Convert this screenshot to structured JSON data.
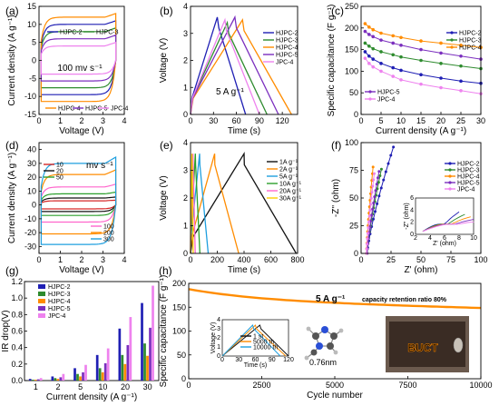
{
  "chart_data": [
    {
      "panel": "(a)",
      "type": "line",
      "xlabel": "Voltage (V)",
      "ylabel": "Current density (A g⁻¹)",
      "xlim": [
        0,
        4
      ],
      "ylim": [
        -15,
        15
      ],
      "xticks": [
        0,
        1,
        2,
        3,
        4
      ],
      "yticks": [
        -15,
        -10,
        -5,
        0,
        5,
        10,
        15
      ],
      "annotation": "100 mv s⁻¹",
      "legend_top": [
        "HJPC-2",
        "HJPC-3"
      ],
      "legend_bottom": [
        "HJPC-4",
        "HJPC-5",
        "JPC-4"
      ],
      "series": [
        {
          "name": "HJPC-2",
          "color": "#1f1fb4",
          "amp": 10,
          "ymax": 11
        },
        {
          "name": "HJPC-3",
          "color": "#2e8b2e",
          "amp": 8,
          "ymax": 9
        },
        {
          "name": "HJPC-4",
          "color": "#ff8c00",
          "amp": 12,
          "ymax": 13
        },
        {
          "name": "HJPC-5",
          "color": "#7b2fbe",
          "amp": 6,
          "ymax": 7
        },
        {
          "name": "JPC-4",
          "color": "#ee82ee",
          "amp": 4,
          "ymax": 5
        }
      ]
    },
    {
      "panel": "(b)",
      "type": "line",
      "xlabel": "Time (s)",
      "ylabel": "Voltage (V)",
      "xlim": [
        0,
        140
      ],
      "ylim": [
        0,
        4
      ],
      "xticks": [
        0,
        30,
        60,
        90,
        120
      ],
      "yticks": [
        0,
        1,
        2,
        3,
        4
      ],
      "annotation": "5 A g⁻¹",
      "series": [
        {
          "name": "HJPC-2",
          "color": "#1f1fb4",
          "peak_time": 35,
          "end_time": 72,
          "peak_v": 3.6
        },
        {
          "name": "HJPC-3",
          "color": "#2e8b2e",
          "peak_time": 48,
          "end_time": 100,
          "peak_v": 3.4
        },
        {
          "name": "HJPC-4",
          "color": "#ff8c00",
          "peak_time": 68,
          "end_time": 132,
          "peak_v": 3.5
        },
        {
          "name": "HJPC-5",
          "color": "#7b2fbe",
          "peak_time": 58,
          "end_time": 115,
          "peak_v": 3.6
        },
        {
          "name": "JPC-4",
          "color": "#ee82ee",
          "peak_time": 45,
          "end_time": 90,
          "peak_v": 3.5
        }
      ]
    },
    {
      "panel": "(c)",
      "type": "line",
      "xlabel": "Current density (A g⁻¹)",
      "ylabel": "Specific capacitance (F g⁻¹)",
      "xlim": [
        0,
        30
      ],
      "ylim": [
        0,
        250
      ],
      "xticks": [
        0,
        5,
        10,
        15,
        20,
        25,
        30
      ],
      "yticks": [
        0,
        50,
        100,
        150,
        200,
        250
      ],
      "legend_top": [
        "HJPC-2",
        "HJPC-3",
        "HJPC-4"
      ],
      "legend_bottom": [
        "HJPC-5",
        "JPC-4"
      ],
      "x": [
        1,
        2,
        3,
        5,
        8,
        10,
        15,
        20,
        25,
        30
      ],
      "series": [
        {
          "name": "HJPC-2",
          "color": "#1f1fb4",
          "values": [
            145,
            135,
            128,
            118,
            108,
            102,
            92,
            84,
            77,
            72
          ]
        },
        {
          "name": "HJPC-3",
          "color": "#2e8b2e",
          "values": [
            165,
            158,
            152,
            145,
            138,
            133,
            125,
            118,
            112,
            106
          ]
        },
        {
          "name": "HJPC-4",
          "color": "#ff8c00",
          "values": [
            210,
            202,
            196,
            188,
            182,
            178,
            170,
            165,
            160,
            155
          ]
        },
        {
          "name": "HJPC-5",
          "color": "#7b2fbe",
          "values": [
            192,
            185,
            180,
            172,
            165,
            160,
            150,
            142,
            135,
            128
          ]
        },
        {
          "name": "JPC-4",
          "color": "#ee82ee",
          "values": [
            130,
            118,
            110,
            100,
            88,
            80,
            70,
            62,
            55,
            48
          ]
        }
      ]
    },
    {
      "panel": "(d)",
      "type": "line",
      "xlabel": "Voltage (V)",
      "ylabel": "Current density (A g⁻¹)",
      "xlim": [
        0,
        4
      ],
      "ylim": [
        -35,
        45
      ],
      "xticks": [
        0,
        1,
        2,
        3,
        4
      ],
      "yticks": [
        -30,
        -20,
        -10,
        0,
        10,
        20,
        30,
        40
      ],
      "annotation": "mv s⁻¹",
      "legend_top": [
        "10",
        "20",
        "50"
      ],
      "legend_bottom": [
        "100",
        "200",
        "300"
      ],
      "series": [
        {
          "name": "10",
          "color": "#d62728",
          "amp": 3
        },
        {
          "name": "20",
          "color": "#111111",
          "amp": 5
        },
        {
          "name": "50",
          "color": "#2ca02c",
          "amp": 8
        },
        {
          "name": "100",
          "color": "#ff66cc",
          "amp": 13
        },
        {
          "name": "200",
          "color": "#ff8c00",
          "amp": 22
        },
        {
          "name": "300",
          "color": "#1f9fdf",
          "amp": 30
        }
      ]
    },
    {
      "panel": "(e)",
      "type": "line",
      "xlabel": "Time (s)",
      "ylabel": "Voltage (V)",
      "xlim": [
        0,
        800
      ],
      "ylim": [
        0,
        4
      ],
      "xticks": [
        0,
        200,
        400,
        600,
        800
      ],
      "yticks": [
        0,
        1,
        2,
        3,
        4
      ],
      "series": [
        {
          "name": "1A g⁻¹",
          "color": "#111111",
          "peak_time": 400,
          "end_time": 790,
          "peak_v": 3.6
        },
        {
          "name": "2A g⁻¹",
          "color": "#ff8c00",
          "peak_time": 180,
          "end_time": 360,
          "peak_v": 3.6
        },
        {
          "name": "5A g⁻¹",
          "color": "#1f9fdf",
          "peak_time": 68,
          "end_time": 132,
          "peak_v": 3.6
        },
        {
          "name": "10A g⁻¹",
          "color": "#2ca02c",
          "peak_time": 36,
          "end_time": 70,
          "peak_v": 3.6
        },
        {
          "name": "20A g⁻¹",
          "color": "#ff66cc",
          "peak_time": 18,
          "end_time": 35,
          "peak_v": 3.6
        },
        {
          "name": "30A g⁻¹",
          "color": "#ffcc00",
          "peak_time": 10,
          "end_time": 20,
          "peak_v": 3.6
        }
      ]
    },
    {
      "panel": "(f)",
      "type": "scatter",
      "xlabel": "Z' (ohm)",
      "ylabel": "-Z'' (ohm)",
      "xlim": [
        0,
        100
      ],
      "ylim": [
        0,
        100
      ],
      "xticks": [
        0,
        25,
        50,
        75,
        100
      ],
      "yticks": [
        0,
        25,
        50,
        75,
        100
      ],
      "inset": {
        "xlabel": "Z' (ohm)",
        "ylabel": "-Z'' (ohm)",
        "xticks": [
          2,
          4,
          6,
          8,
          10
        ],
        "yticks": [
          0,
          2,
          4,
          6
        ],
        "xlim": [
          2,
          10
        ],
        "ylim": [
          0,
          6
        ]
      },
      "series": [
        {
          "name": "HJPC-2",
          "color": "#1f1fb4",
          "x0": 5,
          "x1": 27,
          "ymax": 96
        },
        {
          "name": "HJPC-3",
          "color": "#2e8b2e",
          "x0": 5,
          "x1": 17,
          "ymax": 76
        },
        {
          "name": "HJPC-4",
          "color": "#ff8c00",
          "x0": 4.5,
          "x1": 10,
          "ymax": 78
        },
        {
          "name": "HJPC-5",
          "color": "#7b2fbe",
          "x0": 5,
          "x1": 15,
          "ymax": 74
        },
        {
          "name": "JPC-4",
          "color": "#ee82ee",
          "x0": 4.5,
          "x1": 11,
          "ymax": 72
        }
      ]
    },
    {
      "panel": "(g)",
      "type": "bar",
      "xlabel": "Current density (A g⁻¹)",
      "ylabel": "IR drop(V)",
      "ylim": [
        0,
        1.2
      ],
      "yticks": [
        0.0,
        0.2,
        0.4,
        0.6,
        0.8,
        1.0,
        1.2
      ],
      "categories": [
        "1",
        "2",
        "5",
        "10",
        "20",
        "30"
      ],
      "series": [
        {
          "name": "HJPC-2",
          "color": "#1f1fb4",
          "values": [
            0.02,
            0.05,
            0.15,
            0.31,
            0.63,
            0.94
          ]
        },
        {
          "name": "HJPC-3",
          "color": "#2e8b2e",
          "values": [
            0.01,
            0.03,
            0.08,
            0.15,
            0.31,
            0.45
          ]
        },
        {
          "name": "HJPC-4",
          "color": "#ff8c00",
          "values": [
            0.01,
            0.02,
            0.05,
            0.1,
            0.2,
            0.3
          ]
        },
        {
          "name": "HJPC-5",
          "color": "#7b2fbe",
          "values": [
            0.015,
            0.04,
            0.1,
            0.21,
            0.43,
            0.64
          ]
        },
        {
          "name": "JPC-4",
          "color": "#ee82ee",
          "values": [
            0.03,
            0.08,
            0.19,
            0.39,
            0.77,
            1.15
          ]
        }
      ]
    },
    {
      "panel": "(h)",
      "type": "line",
      "xlabel": "Cycle number",
      "ylabel": "Specific capacitance (F g⁻¹)",
      "xlim": [
        0,
        10000
      ],
      "ylim": [
        0,
        200
      ],
      "xticks": [
        0,
        2500,
        5000,
        7500,
        10000
      ],
      "yticks": [
        0,
        50,
        100,
        150,
        200
      ],
      "annotation_rate": "5 A g⁻¹",
      "annotation_retention": "capacity retention ratio 80%",
      "molecule_label": "0.76nm",
      "photo_text": "BUCT",
      "series": [
        {
          "name": "capacitance",
          "color": "#ff8c00",
          "start": 188,
          "end": 148
        }
      ],
      "inset": {
        "xlabel": "Time (s)",
        "ylabel": "Voltage (V)",
        "xticks": [
          0,
          30,
          60,
          90,
          120
        ],
        "yticks": [
          0,
          1,
          2,
          3,
          4
        ],
        "xlim": [
          0,
          120
        ],
        "ylim": [
          0,
          4
        ],
        "series": [
          {
            "name": "1 st",
            "color": "#111111",
            "peak": 68,
            "end": 130
          },
          {
            "name": "5000 th",
            "color": "#ff8c00",
            "peak": 60,
            "end": 115
          },
          {
            "name": "10000 th",
            "color": "#1f9fdf",
            "peak": 55,
            "end": 105
          }
        ]
      }
    }
  ]
}
